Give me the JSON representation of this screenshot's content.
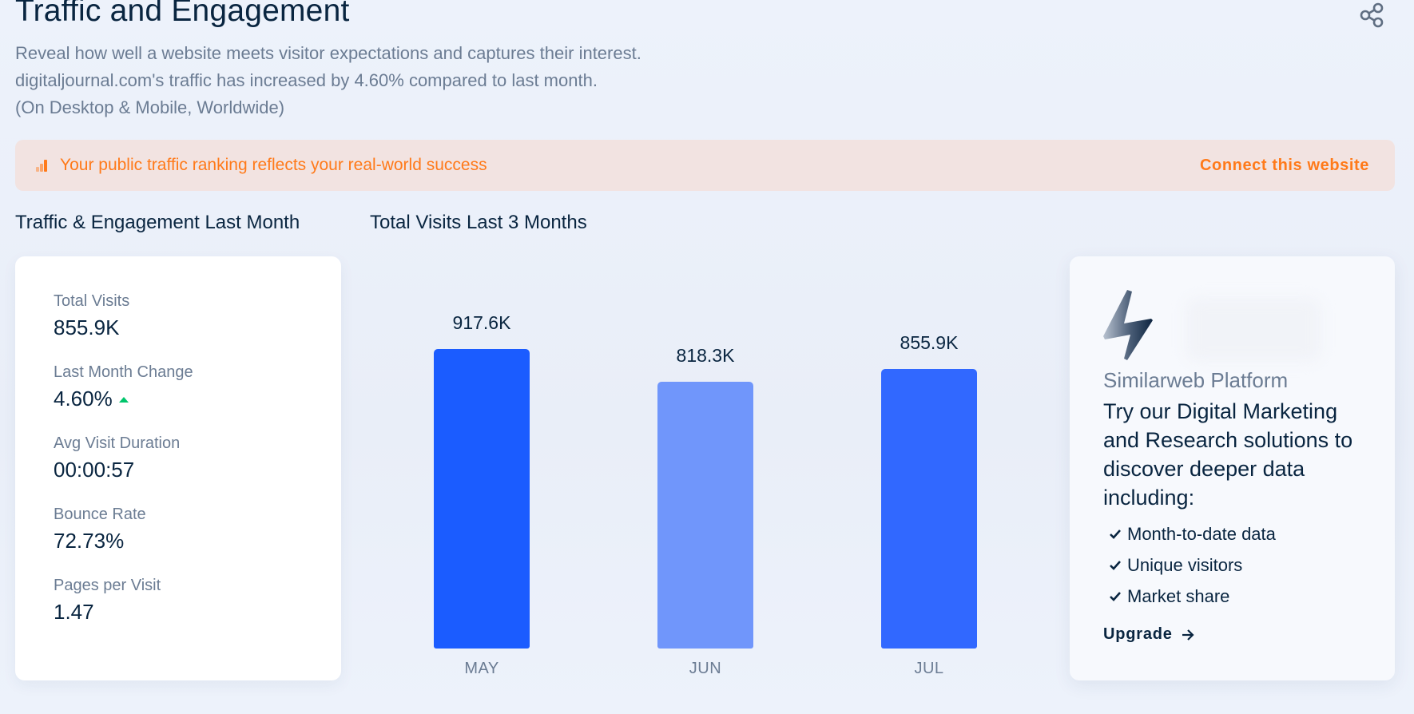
{
  "header": {
    "title": "Traffic and Engagement",
    "subtitle_lines": [
      "Reveal how well a website meets visitor expectations and captures their interest.",
      "digitaljournal.com's traffic has increased by 4.60% compared to last month.",
      "(On Desktop & Mobile, Worldwide)"
    ],
    "share_icon": "share-icon"
  },
  "banner": {
    "icon": "rank-bars-icon",
    "text": "Your public traffic ranking reflects your real-world success",
    "link_label": "Connect this website",
    "color": "#ff7a1a",
    "background": "#f2e3e1"
  },
  "sections": {
    "left_heading": "Traffic & Engagement Last Month",
    "right_heading": "Total Visits Last 3 Months"
  },
  "metrics": [
    {
      "label": "Total Visits",
      "value": "855.9K"
    },
    {
      "label": "Last Month Change",
      "value": "4.60%",
      "trend": "up"
    },
    {
      "label": "Avg Visit Duration",
      "value": "00:00:57"
    },
    {
      "label": "Bounce Rate",
      "value": "72.73%"
    },
    {
      "label": "Pages per Visit",
      "value": "1.47"
    }
  ],
  "chart_data": {
    "type": "bar",
    "title": "Total Visits Last 3 Months",
    "categories": [
      "MAY",
      "JUN",
      "JUL"
    ],
    "values": [
      917600,
      818300,
      855900
    ],
    "value_labels": [
      "917.6K",
      "818.3K",
      "855.9K"
    ],
    "colors": [
      "#1b5cff",
      "#7096fb",
      "#3168ff"
    ],
    "xlabel": "",
    "ylabel": "",
    "ylim": [
      0,
      917600
    ],
    "grid": false,
    "legend": "none"
  },
  "promo": {
    "icon": "lightning-bolt-icon",
    "subtitle": "Similarweb Platform",
    "headline": "Try our Digital Marketing and Research solutions to discover deeper data including:",
    "features": [
      "Month-to-date data",
      "Unique visitors",
      "Market share"
    ],
    "cta_label": "Upgrade"
  }
}
